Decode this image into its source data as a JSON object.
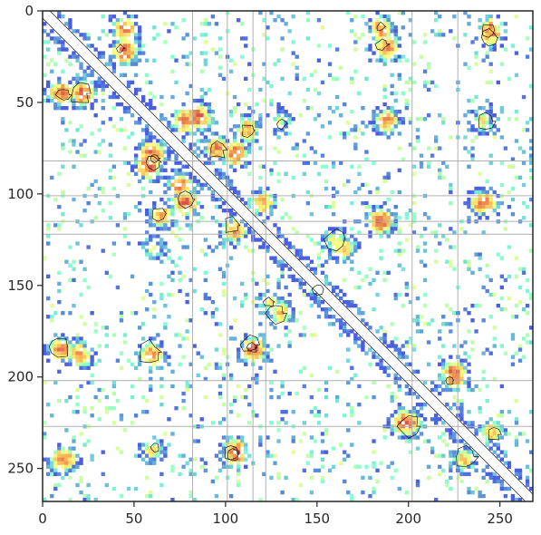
{
  "chart_data": {
    "type": "heatmap",
    "title": "",
    "xlabel": "",
    "ylabel": "",
    "xlim": [
      0,
      268
    ],
    "ylim": [
      268,
      0
    ],
    "x_ticks": [
      0,
      50,
      100,
      150,
      200,
      250
    ],
    "y_ticks": [
      0,
      50,
      100,
      150,
      200,
      250
    ],
    "grid": false,
    "colormap": "jet",
    "colors": {
      "low": "#4a5ee0",
      "mid": "#7fffd4",
      "mid_high": "#ffff80",
      "high": "#d9534f",
      "contour": "#000000",
      "domain_lines": "#b0b0b0"
    },
    "domain_boundaries": [
      82,
      101,
      115,
      122,
      202,
      227
    ],
    "hotspots": [
      {
        "x": 22,
        "y": 45,
        "intensity": 0.95
      },
      {
        "x": 45,
        "y": 10,
        "intensity": 0.9
      },
      {
        "x": 78,
        "y": 60,
        "intensity": 0.9
      },
      {
        "x": 95,
        "y": 75,
        "intensity": 0.85
      },
      {
        "x": 58,
        "y": 85,
        "intensity": 0.95
      },
      {
        "x": 78,
        "y": 105,
        "intensity": 0.95
      },
      {
        "x": 65,
        "y": 112,
        "intensity": 0.8
      },
      {
        "x": 105,
        "y": 120,
        "intensity": 0.8
      },
      {
        "x": 185,
        "y": 115,
        "intensity": 0.95
      },
      {
        "x": 242,
        "y": 105,
        "intensity": 0.9
      },
      {
        "x": 185,
        "y": 10,
        "intensity": 0.85
      },
      {
        "x": 245,
        "y": 10,
        "intensity": 0.8
      },
      {
        "x": 115,
        "y": 185,
        "intensity": 0.95
      },
      {
        "x": 20,
        "y": 188,
        "intensity": 0.85
      },
      {
        "x": 60,
        "y": 188,
        "intensity": 0.85
      },
      {
        "x": 225,
        "y": 198,
        "intensity": 0.95
      },
      {
        "x": 200,
        "y": 225,
        "intensity": 0.9
      },
      {
        "x": 105,
        "y": 240,
        "intensity": 0.85
      },
      {
        "x": 12,
        "y": 245,
        "intensity": 0.85
      },
      {
        "x": 130,
        "y": 165,
        "intensity": 0.7
      },
      {
        "x": 150,
        "y": 150,
        "intensity": 0.6
      },
      {
        "x": 245,
        "y": 230,
        "intensity": 0.7
      },
      {
        "x": 160,
        "y": 125,
        "intensity": 0.6
      },
      {
        "x": 130,
        "y": 60,
        "intensity": 0.55
      },
      {
        "x": 240,
        "y": 60,
        "intensity": 0.6
      }
    ]
  }
}
